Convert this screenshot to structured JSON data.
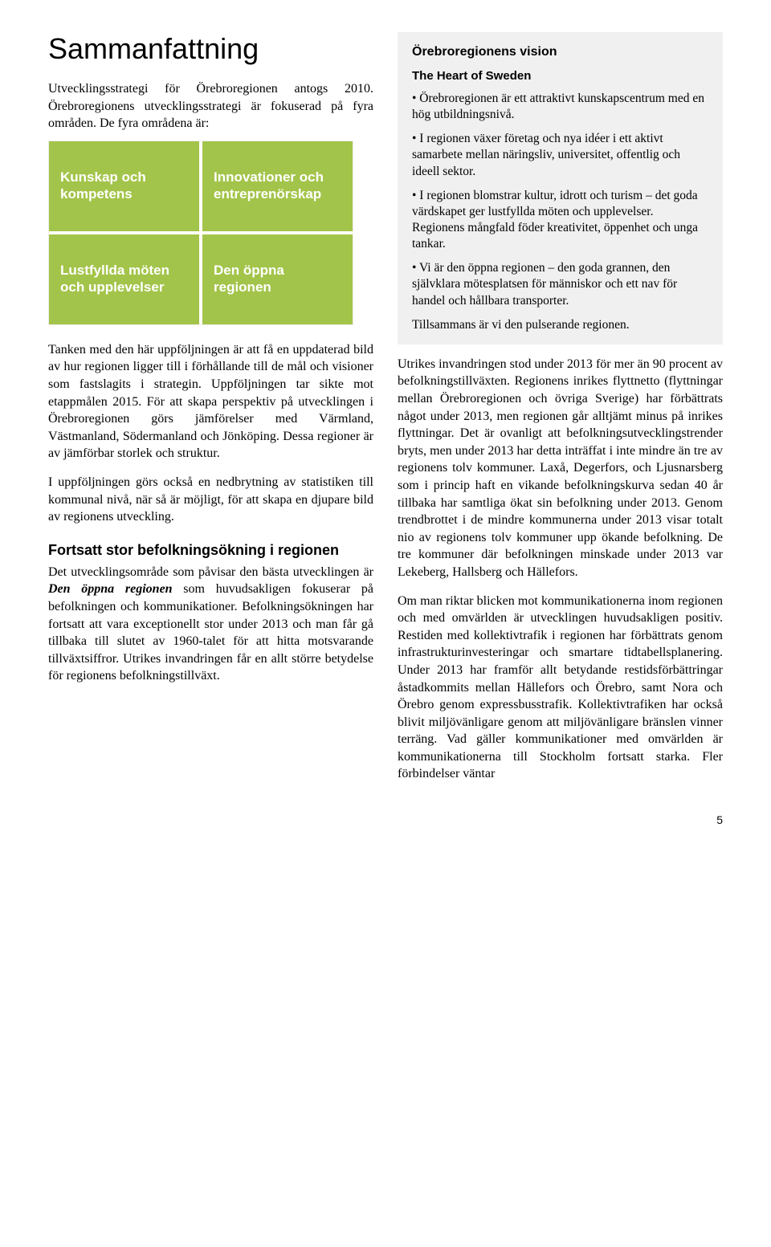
{
  "left": {
    "title": "Sammanfattning",
    "intro": "Utvecklingsstrategi för Örebroregionen antogs 2010. Örebroregionens utvecklingsstrategi är fokuserad på fyra områden. De fyra områdena är:",
    "areas": [
      {
        "label": "Kunskap och kompetens",
        "color": "#a3c44a"
      },
      {
        "label": "Innovationer och entreprenörskap",
        "color": "#a3c44a"
      },
      {
        "label": "Lustfyllda möten och upplevelser",
        "color": "#a3c44a"
      },
      {
        "label": "Den öppna regionen",
        "color": "#a3c44a"
      }
    ],
    "p1": "Tanken med den här uppföljningen är att få en uppdaterad bild av hur regionen ligger till i förhållande till de mål och visioner som fastslagits i strategin. Uppföljningen tar sikte mot etappmålen 2015. För att skapa perspektiv på utvecklingen i Örebroregionen görs jämförelser med Värmland, Västmanland, Södermanland och Jönköping. Dessa regioner är av jämförbar storlek och struktur.",
    "p2": "I uppföljningen görs också en nedbrytning av statistiken till kommunal nivå, när så är möjligt, för att skapa en djupare bild av regionens utveckling.",
    "h2": "Fortsatt stor befolkningsökning i regionen",
    "p3a": "Det utvecklingsområde som påvisar den bästa utvecklingen är ",
    "p3em": "Den öppna regionen",
    "p3b": " som huvudsakligen fokuserar på befolkningen och kommunikationer. Befolkningsökningen har fortsatt att vara exceptionellt stor under 2013 och man får gå tillbaka till slutet av 1960-talet för att hitta motsvarande tillväxtsiffror. Utrikes invandringen får en allt större betydelse för regionens befolkningstillväxt."
  },
  "vision": {
    "heading": "Örebroregionens vision",
    "subheading": "The Heart of Sweden",
    "bullets": [
      "• Örebroregionen är ett attraktivt kunskapscentrum med en hög utbildningsnivå.",
      "• I regionen växer företag och nya idéer i ett aktivt samarbete mellan näringsliv, universitet, offentlig och ideell sektor.",
      "• I regionen blomstrar kultur, idrott och turism – det goda värdskapet ger lustfyllda möten och upplevelser. Regionens mångfald föder kreativitet, öppenhet och unga tankar.",
      "• Vi är den öppna regionen – den goda grannen, den självklara mötesplatsen för människor och ett nav för handel och hållbara transporter."
    ],
    "closing": "Tillsammans är vi den pulserande regionen."
  },
  "right": {
    "p1": "Utrikes invandringen stod under 2013 för mer än 90 procent av befolkningstillväxten. Regionens inrikes flyttnetto (flyttningar mellan Örebroregionen och övriga Sverige) har förbättrats något under 2013, men regionen går alltjämt minus på inrikes flyttningar. Det är ovanligt att befolkningsutvecklingstrender bryts, men under 2013 har detta inträffat i inte mindre än tre av regionens tolv kommuner. Laxå, Degerfors, och Ljusnarsberg som i princip haft en vikande befolkningskurva sedan 40 år tillbaka har samtliga ökat sin befolkning under 2013. Genom trendbrottet i de mindre kommunerna under 2013 visar totalt nio av regionens tolv kommuner upp ökande befolkning. De tre kommuner där befolkningen minskade under 2013 var Lekeberg, Hallsberg och Hällefors.",
    "p2": "Om man riktar blicken mot kommunikationerna inom regionen och med omvärlden är utvecklingen huvudsakligen positiv. Restiden med kollektivtrafik i regionen har förbättrats genom infrastrukturinvesteringar och smartare tidtabellsplanering. Under 2013 har framför allt betydande restidsförbättringar åstadkommits mellan Hällefors och Örebro, samt Nora och Örebro genom expressbusstrafik. Kollektivtrafiken har också blivit miljövänligare genom att miljövänligare bränslen vinner terräng. Vad gäller kommunikationer med omvärlden är kommunikationerna till Stockholm fortsatt starka. Fler förbindelser väntar"
  },
  "pageNumber": "5"
}
